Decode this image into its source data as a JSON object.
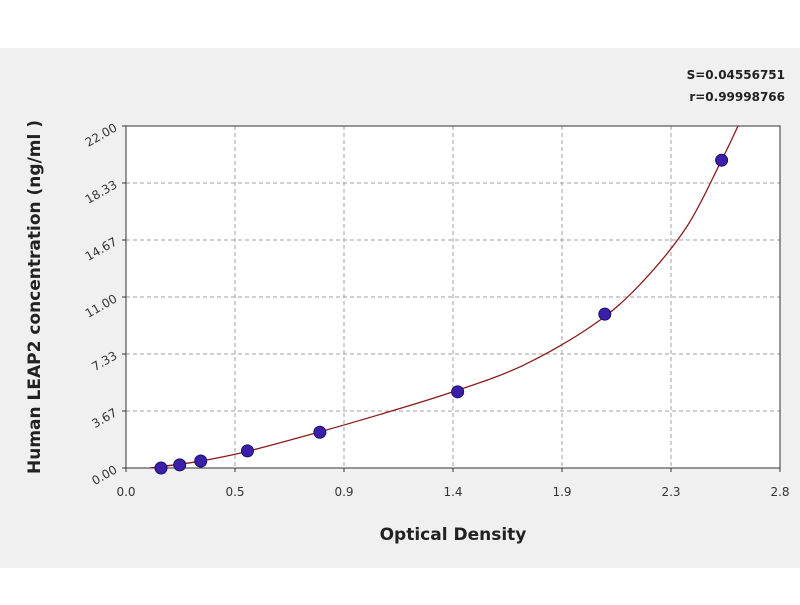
{
  "chart_data": {
    "type": "scatter",
    "xlabel": "Optical Density",
    "ylabel": "Human LEAP2 concentration (ng/ml )",
    "xlim": [
      0.0,
      2.8
    ],
    "ylim": [
      0.0,
      22.0
    ],
    "x_ticks": [
      "0.0",
      "0.5",
      "0.9",
      "1.4",
      "1.9",
      "2.3",
      "2.8"
    ],
    "y_ticks": [
      "0.00",
      "3.67",
      "7.33",
      "11.00",
      "14.67",
      "18.33",
      "22.00"
    ],
    "grid": true,
    "stats": {
      "s_label": "S=0.04556751",
      "r_label": "r=0.99998766"
    },
    "series": [
      {
        "points": [
          {
            "x": 0.15,
            "y": 0.0
          },
          {
            "x": 0.23,
            "y": 0.2
          },
          {
            "x": 0.32,
            "y": 0.45
          },
          {
            "x": 0.52,
            "y": 1.1
          },
          {
            "x": 0.83,
            "y": 2.3
          },
          {
            "x": 1.42,
            "y": 4.9
          },
          {
            "x": 2.05,
            "y": 9.9
          },
          {
            "x": 2.55,
            "y": 19.8
          }
        ],
        "fit_curve": [
          {
            "x": 0.1,
            "y": 0.0
          },
          {
            "x": 0.3,
            "y": 0.4
          },
          {
            "x": 0.5,
            "y": 1.0
          },
          {
            "x": 0.8,
            "y": 2.2
          },
          {
            "x": 1.1,
            "y": 3.5
          },
          {
            "x": 1.4,
            "y": 4.9
          },
          {
            "x": 1.7,
            "y": 6.6
          },
          {
            "x": 2.0,
            "y": 9.2
          },
          {
            "x": 2.2,
            "y": 11.8
          },
          {
            "x": 2.4,
            "y": 15.5
          },
          {
            "x": 2.55,
            "y": 19.8
          },
          {
            "x": 2.62,
            "y": 22.0
          }
        ]
      }
    ],
    "colors": {
      "point_fill": "#3c1fa8",
      "curve": "#8b1a1a",
      "grid": "#a0a0a0",
      "plot_bg": "#ffffff",
      "frame_bg": "#f0f0f0"
    }
  }
}
